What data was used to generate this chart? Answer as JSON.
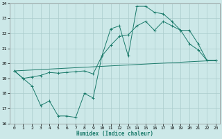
{
  "line_color": "#1a7a6a",
  "bg_color": "#cce8e8",
  "grid_color": "#aacccc",
  "xlabel": "Humidex (Indice chaleur)",
  "ylim": [
    16,
    24
  ],
  "xlim": [
    -0.5,
    23.5
  ],
  "yticks": [
    16,
    17,
    18,
    19,
    20,
    21,
    22,
    23,
    24
  ],
  "xticks": [
    0,
    1,
    2,
    3,
    4,
    5,
    6,
    7,
    8,
    9,
    10,
    11,
    12,
    13,
    14,
    15,
    16,
    17,
    18,
    19,
    20,
    21,
    22,
    23
  ],
  "line1_x": [
    0,
    1,
    2,
    3,
    4,
    5,
    6,
    7,
    8,
    9,
    10,
    11,
    12,
    13,
    14,
    15,
    16,
    17,
    18,
    19,
    20,
    21,
    22,
    23
  ],
  "line1_y": [
    19.5,
    19.0,
    18.5,
    17.2,
    17.5,
    16.5,
    16.5,
    16.4,
    18.0,
    17.7,
    20.5,
    22.3,
    22.5,
    20.5,
    23.8,
    23.8,
    23.4,
    23.3,
    22.8,
    22.2,
    21.3,
    20.9,
    20.2,
    20.2
  ],
  "line2_x": [
    0,
    1,
    2,
    3,
    4,
    5,
    6,
    7,
    8,
    9,
    10,
    11,
    12,
    13,
    14,
    15,
    16,
    17,
    18,
    19,
    20,
    21,
    22,
    23
  ],
  "line2_y": [
    19.5,
    19.0,
    19.1,
    19.2,
    19.4,
    19.35,
    19.4,
    19.45,
    19.5,
    19.3,
    20.5,
    21.2,
    21.8,
    21.9,
    22.5,
    22.8,
    22.2,
    22.8,
    22.5,
    22.2,
    22.2,
    21.3,
    20.2,
    20.2
  ],
  "line3_x": [
    0,
    23
  ],
  "line3_y": [
    19.5,
    20.2
  ]
}
